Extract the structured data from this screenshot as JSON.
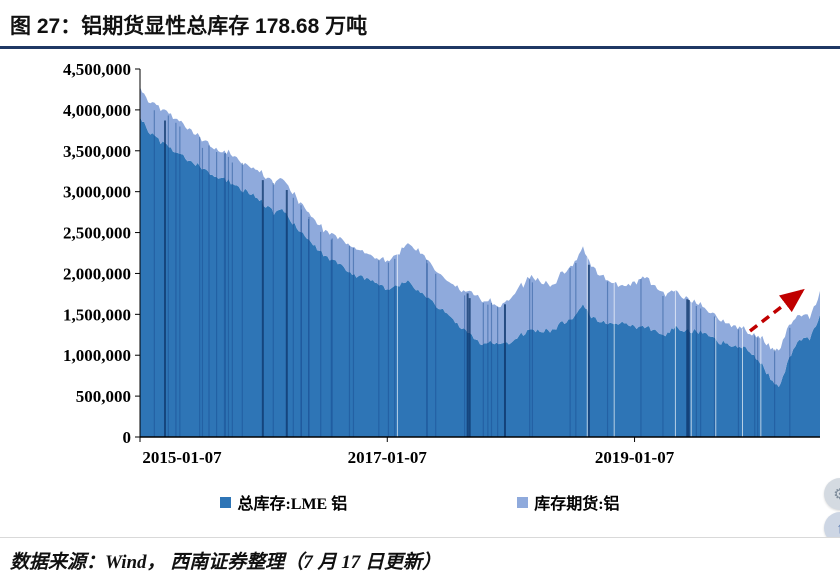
{
  "page": {
    "title": "图 27：铝期货显性总库存 178.68 万吨",
    "source_note": "数据来源：Wind， 西南证券整理（7 月 17 日更新）"
  },
  "chart_data": {
    "type": "area",
    "stacked": true,
    "title": "铝期货显性总库存",
    "xlabel": "",
    "ylabel": "",
    "ylim": [
      0,
      4500000
    ],
    "grid": false,
    "legend_position": "bottom",
    "y_tick_labels": [
      "0",
      "500,000",
      "1,000,000",
      "1,500,000",
      "2,000,000",
      "2,500,000",
      "3,000,000",
      "3,500,000",
      "4,000,000",
      "4,500,000"
    ],
    "y_tick_step": 500000,
    "x_ticks": [
      {
        "label": "2015-01-07",
        "month_index": 0
      },
      {
        "label": "2017-01-07",
        "month_index": 24
      },
      {
        "label": "2019-01-07",
        "month_index": 48
      }
    ],
    "x": [
      "2015-01",
      "2015-02",
      "2015-03",
      "2015-04",
      "2015-05",
      "2015-06",
      "2015-07",
      "2015-08",
      "2015-09",
      "2015-10",
      "2015-11",
      "2015-12",
      "2016-01",
      "2016-02",
      "2016-03",
      "2016-04",
      "2016-05",
      "2016-06",
      "2016-07",
      "2016-08",
      "2016-09",
      "2016-10",
      "2016-11",
      "2016-12",
      "2017-01",
      "2017-02",
      "2017-03",
      "2017-04",
      "2017-05",
      "2017-06",
      "2017-07",
      "2017-08",
      "2017-09",
      "2017-10",
      "2017-11",
      "2017-12",
      "2018-01",
      "2018-02",
      "2018-03",
      "2018-04",
      "2018-05",
      "2018-06",
      "2018-07",
      "2018-08",
      "2018-09",
      "2018-10",
      "2018-11",
      "2018-12",
      "2019-01",
      "2019-02",
      "2019-03",
      "2019-04",
      "2019-05",
      "2019-06",
      "2019-07",
      "2019-08",
      "2019-09",
      "2019-10",
      "2019-11",
      "2019-12",
      "2020-01",
      "2020-02",
      "2020-03",
      "2020-04",
      "2020-05",
      "2020-06",
      "2020-07"
    ],
    "series": [
      {
        "name": "总库存:LME 铝",
        "color": "#2E75B6",
        "values": [
          3900000,
          3720000,
          3600000,
          3530000,
          3450000,
          3370000,
          3290000,
          3210000,
          3170000,
          3100000,
          3020000,
          2980000,
          2850000,
          2740000,
          2770000,
          2590000,
          2460000,
          2330000,
          2200000,
          2130000,
          2060000,
          1970000,
          1940000,
          1900000,
          1800000,
          1850000,
          1900000,
          1800000,
          1700000,
          1580000,
          1500000,
          1350000,
          1250000,
          1150000,
          1150000,
          1150000,
          1150000,
          1250000,
          1300000,
          1300000,
          1300000,
          1400000,
          1450000,
          1600000,
          1450000,
          1400000,
          1400000,
          1400000,
          1350000,
          1350000,
          1300000,
          1250000,
          1350000,
          1300000,
          1300000,
          1250000,
          1170000,
          1140000,
          1110000,
          1080000,
          950000,
          750000,
          600000,
          950000,
          1200000,
          1200000,
          1496800
        ]
      },
      {
        "name": "库存期货:铝",
        "color": "#8FAADC",
        "values": [
          350000,
          380000,
          400000,
          420000,
          400000,
          380000,
          360000,
          340000,
          330000,
          350000,
          330000,
          320000,
          350000,
          360000,
          380000,
          360000,
          340000,
          320000,
          300000,
          320000,
          340000,
          330000,
          310000,
          300000,
          350000,
          400000,
          450000,
          500000,
          450000,
          420000,
          400000,
          450000,
          500000,
          550000,
          500000,
          450000,
          550000,
          600000,
          650000,
          600000,
          550000,
          600000,
          650000,
          700000,
          600000,
          550000,
          500000,
          450000,
          550000,
          600000,
          550000,
          500000,
          450000,
          400000,
          350000,
          300000,
          280000,
          260000,
          240000,
          220000,
          300000,
          350000,
          450000,
          400000,
          300000,
          250000,
          290000
        ]
      }
    ],
    "legend": [
      {
        "label": "总库存:LME 铝",
        "color": "#2E75B6"
      },
      {
        "label": "库存期货:铝",
        "color": "#8FAADC"
      }
    ],
    "annotations": [
      {
        "type": "dashed-arrow",
        "color": "#C00000",
        "position": "end-of-series",
        "meaning": "latest uptick to 1,786,800 t"
      }
    ],
    "latest_total_value": 1786800
  },
  "floating_widget": {
    "top_icon": "⚙",
    "bottom_icon": "↑"
  }
}
